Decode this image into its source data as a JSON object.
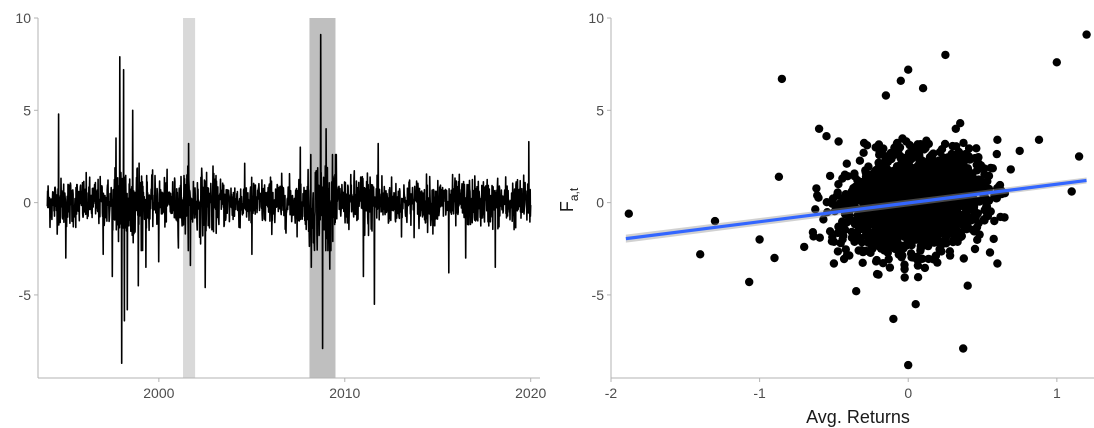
{
  "chart_data": [
    {
      "type": "line",
      "title": "",
      "xlabel": "",
      "ylabel": "",
      "xlim": [
        1993.5,
        2020.5
      ],
      "ylim": [
        -9.5,
        10
      ],
      "x_ticks": [
        2000,
        2010,
        2020
      ],
      "x_tick_labels": [
        "2000",
        "2010",
        "2020"
      ],
      "y_ticks": [
        -5,
        0,
        5,
        10
      ],
      "y_tick_labels": [
        "-5",
        "0",
        "5",
        "10"
      ],
      "grid": false,
      "line_color": "#000000",
      "shaded_regions": [
        {
          "start": 2001.3,
          "end": 2001.95,
          "color": "#d9d9d9"
        },
        {
          "start": 2008.1,
          "end": 2009.5,
          "color": "#bfbfbf"
        }
      ],
      "series": [
        {
          "x_start": 1994.0,
          "x_end": 2020.0,
          "typical_range": [
            -2.5,
            2.5
          ],
          "spikes": [
            {
              "x": 1994.6,
              "y": 4.8
            },
            {
              "x": 1995.0,
              "y": -3.0
            },
            {
              "x": 1997.0,
              "y": -2.8
            },
            {
              "x": 1997.5,
              "y": -4.0
            },
            {
              "x": 1997.7,
              "y": 3.5
            },
            {
              "x": 1997.9,
              "y": 7.9
            },
            {
              "x": 1998.0,
              "y": -8.7
            },
            {
              "x": 1998.1,
              "y": 7.2
            },
            {
              "x": 1998.15,
              "y": -6.4
            },
            {
              "x": 1998.3,
              "y": -5.8
            },
            {
              "x": 1998.6,
              "y": 5.0
            },
            {
              "x": 1998.9,
              "y": -4.5
            },
            {
              "x": 1999.3,
              "y": -3.5
            },
            {
              "x": 2000.0,
              "y": -3.2
            },
            {
              "x": 2001.6,
              "y": 3.2
            },
            {
              "x": 2001.7,
              "y": -3.4
            },
            {
              "x": 2002.5,
              "y": -4.6
            },
            {
              "x": 2005.0,
              "y": -2.8
            },
            {
              "x": 2007.6,
              "y": 3.0
            },
            {
              "x": 2008.2,
              "y": -3.5
            },
            {
              "x": 2008.7,
              "y": 9.1
            },
            {
              "x": 2008.8,
              "y": -7.9
            },
            {
              "x": 2009.0,
              "y": 4.0
            },
            {
              "x": 2009.2,
              "y": -3.6
            },
            {
              "x": 2011.0,
              "y": -4.0
            },
            {
              "x": 2011.6,
              "y": -5.5
            },
            {
              "x": 2011.8,
              "y": 3.2
            },
            {
              "x": 2015.6,
              "y": -3.8
            },
            {
              "x": 2016.5,
              "y": -3.0
            },
            {
              "x": 2018.1,
              "y": -3.5
            },
            {
              "x": 2019.9,
              "y": 3.3
            }
          ]
        }
      ]
    },
    {
      "type": "scatter",
      "title": "",
      "xlabel": "Avg. Returns",
      "ylabel": "F",
      "ylabel_subscript": "a,t",
      "xlim": [
        -2.0,
        1.25
      ],
      "ylim": [
        -9.5,
        10
      ],
      "x_ticks": [
        -2,
        -1,
        0,
        1
      ],
      "x_tick_labels": [
        "-2",
        "-1",
        "0",
        "1"
      ],
      "y_ticks": [
        -5,
        0,
        5,
        10
      ],
      "y_tick_labels": [
        "-5",
        "0",
        "5",
        "10"
      ],
      "grid": false,
      "point_color": "#000000",
      "fit_line": {
        "x": [
          -1.9,
          1.2
        ],
        "y": [
          -1.95,
          1.2
        ],
        "color": "#3366ff",
        "band_color": "#999999"
      },
      "cloud": {
        "center": [
          0.05,
          0.0
        ],
        "sd_x": 0.22,
        "sd_y": 1.2,
        "count": 2200
      },
      "points": [
        {
          "x": -1.88,
          "y": -0.6
        },
        {
          "x": -1.4,
          "y": -2.8
        },
        {
          "x": -1.3,
          "y": -1.0
        },
        {
          "x": -1.07,
          "y": -4.3
        },
        {
          "x": -1.0,
          "y": -2.0
        },
        {
          "x": -0.9,
          "y": -3.0
        },
        {
          "x": -0.87,
          "y": 1.4
        },
        {
          "x": -0.85,
          "y": 6.7
        },
        {
          "x": -0.7,
          "y": -2.4
        },
        {
          "x": -0.6,
          "y": 4.0
        },
        {
          "x": -0.55,
          "y": 3.6
        },
        {
          "x": -0.5,
          "y": -3.3
        },
        {
          "x": -0.35,
          "y": -4.8
        },
        {
          "x": -0.15,
          "y": 5.8
        },
        {
          "x": -0.1,
          "y": -6.3
        },
        {
          "x": -0.05,
          "y": 6.6
        },
        {
          "x": 0.0,
          "y": 7.2
        },
        {
          "x": 0.0,
          "y": -8.8
        },
        {
          "x": 0.05,
          "y": -5.5
        },
        {
          "x": 0.1,
          "y": 6.2
        },
        {
          "x": 0.25,
          "y": 8.0
        },
        {
          "x": 0.32,
          "y": 4.0
        },
        {
          "x": 0.35,
          "y": 4.3
        },
        {
          "x": 0.37,
          "y": -7.9
        },
        {
          "x": 0.6,
          "y": 3.4
        },
        {
          "x": 0.55,
          "y": -2.7
        },
        {
          "x": 0.6,
          "y": -3.3
        },
        {
          "x": 0.75,
          "y": 2.8
        },
        {
          "x": 0.88,
          "y": 3.4
        },
        {
          "x": 1.0,
          "y": 7.6
        },
        {
          "x": 1.1,
          "y": 0.6
        },
        {
          "x": 1.15,
          "y": 2.5
        },
        {
          "x": 1.2,
          "y": 9.1
        },
        {
          "x": -0.3,
          "y": 2.7
        },
        {
          "x": 0.4,
          "y": -4.5
        },
        {
          "x": -0.2,
          "y": -3.9
        }
      ]
    }
  ]
}
